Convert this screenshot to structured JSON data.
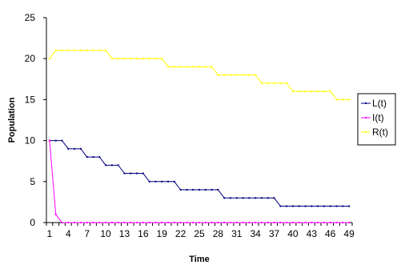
{
  "chart_data": {
    "type": "line",
    "xlabel": "Time",
    "ylabel": "Population",
    "ylim": [
      0,
      25
    ],
    "yticks": [
      0,
      5,
      10,
      15,
      20,
      25
    ],
    "x": [
      1,
      2,
      3,
      4,
      5,
      6,
      7,
      8,
      9,
      10,
      11,
      12,
      13,
      14,
      15,
      16,
      17,
      18,
      19,
      20,
      21,
      22,
      23,
      24,
      25,
      26,
      27,
      28,
      29,
      30,
      31,
      32,
      33,
      34,
      35,
      36,
      37,
      38,
      39,
      40,
      41,
      42,
      43,
      44,
      45,
      46,
      47,
      48,
      49
    ],
    "xtick_labels": [
      "1",
      "4",
      "7",
      "10",
      "13",
      "16",
      "19",
      "22",
      "25",
      "28",
      "31",
      "34",
      "37",
      "40",
      "43",
      "46",
      "49"
    ],
    "legend_position": "right",
    "grid": false,
    "series": [
      {
        "name": "L(t)",
        "color": "#000080",
        "values": [
          10,
          10,
          10,
          9,
          9,
          9,
          8,
          8,
          8,
          7,
          7,
          7,
          6,
          6,
          6,
          6,
          5,
          5,
          5,
          5,
          5,
          4,
          4,
          4,
          4,
          4,
          4,
          4,
          3,
          3,
          3,
          3,
          3,
          3,
          3,
          3,
          3,
          2,
          2,
          2,
          2,
          2,
          2,
          2,
          2,
          2,
          2,
          2,
          2
        ]
      },
      {
        "name": "I(t)",
        "color": "#ff00ff",
        "values": [
          10,
          1,
          0,
          0,
          0,
          0,
          0,
          0,
          0,
          0,
          0,
          0,
          0,
          0,
          0,
          0,
          0,
          0,
          0,
          0,
          0,
          0,
          0,
          0,
          0,
          0,
          0,
          0,
          0,
          0,
          0,
          0,
          0,
          0,
          0,
          0,
          0,
          0,
          0,
          0,
          0,
          0,
          0,
          0,
          0,
          0,
          0,
          0,
          0
        ]
      },
      {
        "name": "R(t)",
        "color": "#ffff00",
        "values": [
          20,
          21,
          21,
          21,
          21,
          21,
          21,
          21,
          21,
          21,
          20,
          20,
          20,
          20,
          20,
          20,
          20,
          20,
          20,
          19,
          19,
          19,
          19,
          19,
          19,
          19,
          19,
          18,
          18,
          18,
          18,
          18,
          18,
          18,
          17,
          17,
          17,
          17,
          17,
          16,
          16,
          16,
          16,
          16,
          16,
          16,
          15,
          15,
          15
        ]
      }
    ]
  }
}
